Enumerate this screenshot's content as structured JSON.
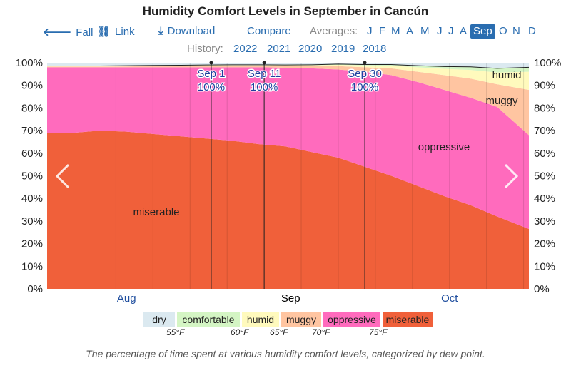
{
  "title": "Humidity Comfort Levels in September in Cancún",
  "toolbar": {
    "fall": "Fall",
    "link": "Link",
    "download": "Download",
    "compare": "Compare",
    "averages_label": "Averages:",
    "months": [
      "J",
      "F",
      "M",
      "A",
      "M",
      "J",
      "J",
      "A",
      "Sep",
      "O",
      "N",
      "D"
    ],
    "active_month": "Sep"
  },
  "history": {
    "label": "History:",
    "years": [
      "2022",
      "2021",
      "2020",
      "2019",
      "2018"
    ]
  },
  "chart_data": {
    "type": "area",
    "stacked": true,
    "x_unit": "day index (0 = Aug 1, 91 = Oct 31)",
    "x": [
      0,
      5,
      10,
      15,
      20,
      25,
      30,
      35,
      40,
      45,
      50,
      55,
      60,
      65,
      70,
      75,
      80,
      85,
      91
    ],
    "series": [
      {
        "name": "miserable",
        "color": "#f0603a",
        "values": [
          69,
          69,
          70,
          69.5,
          68.5,
          67.5,
          66.5,
          65.5,
          64,
          63,
          60.5,
          58,
          54,
          50,
          45.5,
          41,
          37,
          32,
          26.5
        ]
      },
      {
        "name": "oppressive",
        "color": "#ff6bbd",
        "values": [
          29,
          29,
          28,
          28.5,
          29.5,
          30.5,
          31.5,
          32.5,
          34,
          34.8,
          37,
          39,
          42,
          44.5,
          46,
          47,
          47.5,
          48.5,
          41.5
        ]
      },
      {
        "name": "muggy",
        "color": "#ffc5a1",
        "values": [
          0.3,
          0.3,
          0.3,
          0.4,
          0.5,
          0.6,
          0.7,
          0.8,
          0.8,
          0.9,
          1.0,
          1.5,
          2.0,
          3.0,
          4.5,
          6.5,
          8.5,
          10,
          20
        ]
      },
      {
        "name": "humid",
        "color": "#fffabd",
        "values": [
          0.2,
          0.2,
          0.2,
          0.2,
          0.2,
          0.2,
          0.2,
          0.2,
          0.2,
          0.2,
          0.4,
          0.6,
          0.8,
          1.2,
          2.0,
          2.8,
          3.8,
          5.2,
          8.0
        ]
      },
      {
        "name": "comfortable",
        "color": "#d4f5c4",
        "values": [
          0.1,
          0.1,
          0.1,
          0.1,
          0.1,
          0.1,
          0.1,
          0.1,
          0.1,
          0.1,
          0.2,
          0.3,
          0.4,
          0.5,
          0.7,
          1.0,
          1.4,
          1.8,
          2.0
        ]
      },
      {
        "name": "dry",
        "color": "#dbe9f0",
        "values": [
          1.4,
          1.4,
          1.4,
          1.3,
          1.2,
          1.1,
          1.0,
          0.9,
          0.9,
          1.0,
          0.9,
          0.6,
          0.8,
          0.8,
          1.3,
          1.7,
          1.8,
          2.5,
          2.0
        ]
      }
    ],
    "area_labels": [
      "miserable",
      "oppressive",
      "muggy",
      "humid"
    ],
    "ylim": [
      0,
      100
    ],
    "y_ticks": [
      "0%",
      "10%",
      "20%",
      "30%",
      "40%",
      "50%",
      "60%",
      "70%",
      "80%",
      "90%",
      "100%"
    ],
    "x_labels": [
      {
        "text": "Aug",
        "day": 15,
        "highlight": false
      },
      {
        "text": "Sep",
        "day": 46,
        "highlight": true
      },
      {
        "text": "Oct",
        "day": 76,
        "highlight": false
      }
    ],
    "markers": [
      {
        "label": "Sep 1",
        "value": "100%",
        "day": 31
      },
      {
        "label": "Sep 11",
        "value": "100%",
        "day": 41
      },
      {
        "label": "Sep 30",
        "value": "100%",
        "day": 60
      }
    ]
  },
  "legend": {
    "items": [
      {
        "label": "dry",
        "color": "#dbe9f0"
      },
      {
        "label": "comfortable",
        "color": "#d4f5c4"
      },
      {
        "label": "humid",
        "color": "#fffabd"
      },
      {
        "label": "muggy",
        "color": "#ffc5a1"
      },
      {
        "label": "oppressive",
        "color": "#ff6bbd"
      },
      {
        "label": "miserable",
        "color": "#f0603a"
      }
    ],
    "ticks": [
      "55°F",
      "60°F",
      "65°F",
      "70°F",
      "75°F"
    ]
  },
  "caption": "The percentage of time spent at various humidity comfort levels, categorized by dew point."
}
